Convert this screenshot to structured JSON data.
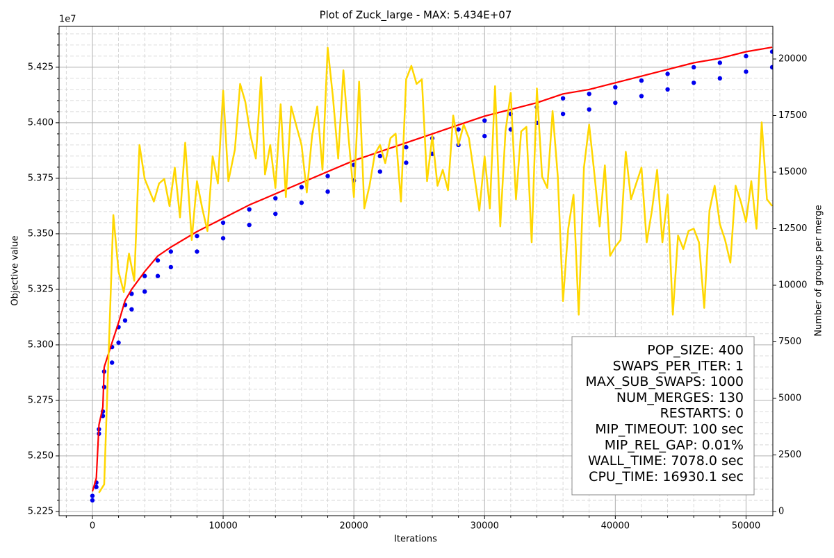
{
  "chart_data": {
    "type": "scatter-line",
    "title": "Plot of Zuck_large - MAX: 5.434E+07",
    "x_label": "Iterations",
    "y_label": "Objective value",
    "y2_label": "Number of groups per merge",
    "y_offset_label": "1e7",
    "xlim": [
      -2550,
      52050
    ],
    "ylim": [
      5.2231,
      5.4434
    ],
    "y2lim": [
      -184,
      21442
    ],
    "xticks": [
      0,
      10000,
      20000,
      30000,
      40000,
      50000
    ],
    "yticks": [
      {
        "value": 5.225,
        "label": "5.225"
      },
      {
        "value": 5.25,
        "label": "5.250"
      },
      {
        "value": 5.275,
        "label": "5.275"
      },
      {
        "value": 5.3,
        "label": "5.300"
      },
      {
        "value": 5.325,
        "label": "5.325"
      },
      {
        "value": 5.35,
        "label": "5.350"
      },
      {
        "value": 5.375,
        "label": "5.375"
      },
      {
        "value": 5.4,
        "label": "5.400"
      },
      {
        "value": 5.425,
        "label": "5.425"
      }
    ],
    "y2ticks": [
      0,
      2500,
      5000,
      7500,
      10000,
      12500,
      15000,
      17500,
      20000
    ],
    "xminor_ticks": [
      -2000,
      2000,
      4000,
      6000,
      8000,
      12000,
      14000,
      16000,
      18000,
      22000,
      24000,
      26000,
      28000,
      32000,
      34000,
      36000,
      38000,
      42000,
      44000,
      46000,
      48000
    ],
    "yminor_ticks": [
      5.23,
      5.235,
      5.24,
      5.245,
      5.255,
      5.26,
      5.265,
      5.27,
      5.28,
      5.285,
      5.29,
      5.295,
      5.305,
      5.31,
      5.315,
      5.32,
      5.33,
      5.335,
      5.34,
      5.345,
      5.355,
      5.36,
      5.365,
      5.37,
      5.38,
      5.385,
      5.39,
      5.395,
      5.405,
      5.41,
      5.415,
      5.42,
      5.43,
      5.435,
      5.44
    ],
    "grid": true,
    "population": {
      "color": "#0000ee",
      "x": [
        0,
        300,
        500,
        800,
        900,
        1500,
        2000,
        2500,
        3000,
        4000,
        5000,
        6000,
        8000,
        10000,
        12000,
        14000,
        16000,
        18000,
        20000,
        22000,
        24000,
        26000,
        28000,
        30000,
        32000,
        34000,
        36000,
        38000,
        40000,
        42000,
        44000,
        46000,
        48000,
        50000,
        52000,
        0,
        300,
        500,
        800,
        900,
        1500,
        2000,
        2500,
        3000,
        4000,
        5000,
        6000,
        8000,
        10000,
        12000,
        14000,
        16000,
        18000,
        20000,
        22000,
        24000,
        26000,
        28000,
        30000,
        32000,
        34000,
        36000,
        38000,
        40000,
        42000,
        44000,
        46000,
        48000,
        50000,
        52000
      ],
      "values": [
        5.232,
        5.238,
        5.262,
        5.27,
        5.288,
        5.299,
        5.308,
        5.318,
        5.323,
        5.331,
        5.338,
        5.342,
        5.349,
        5.355,
        5.361,
        5.366,
        5.371,
        5.376,
        5.381,
        5.385,
        5.389,
        5.393,
        5.397,
        5.401,
        5.404,
        5.407,
        5.411,
        5.413,
        5.416,
        5.419,
        5.422,
        5.425,
        5.427,
        5.43,
        5.432,
        5.23,
        5.236,
        5.26,
        5.268,
        5.281,
        5.292,
        5.301,
        5.311,
        5.316,
        5.324,
        5.331,
        5.335,
        5.342,
        5.348,
        5.354,
        5.359,
        5.364,
        5.369,
        5.374,
        5.378,
        5.382,
        5.386,
        5.39,
        5.394,
        5.397,
        5.4,
        5.404,
        5.406,
        5.409,
        5.412,
        5.415,
        5.418,
        5.42,
        5.423,
        5.425
      ]
    },
    "max_line": {
      "color": "#ff0000",
      "x": [
        0,
        300,
        500,
        800,
        900,
        1500,
        2000,
        2500,
        3000,
        4000,
        5000,
        6000,
        8000,
        10000,
        12000,
        14000,
        16000,
        18000,
        20000,
        22000,
        24000,
        26000,
        28000,
        30000,
        32000,
        34000,
        36000,
        38000,
        40000,
        42000,
        44000,
        46000,
        48000,
        50000,
        52000
      ],
      "values": [
        5.234,
        5.24,
        5.264,
        5.272,
        5.29,
        5.301,
        5.31,
        5.32,
        5.325,
        5.333,
        5.34,
        5.344,
        5.351,
        5.357,
        5.363,
        5.368,
        5.373,
        5.378,
        5.383,
        5.387,
        5.391,
        5.395,
        5.399,
        5.403,
        5.406,
        5.409,
        5.413,
        5.415,
        5.418,
        5.421,
        5.424,
        5.427,
        5.429,
        5.432,
        5.434
      ]
    },
    "groups_line": {
      "color": "#ffd700",
      "axis": "y2",
      "x": [
        500,
        900,
        1600,
        2000,
        2400,
        2800,
        3200,
        3600,
        4000,
        4700,
        5100,
        5500,
        5900,
        6300,
        6700,
        7100,
        7600,
        8000,
        8400,
        8800,
        9200,
        9600,
        10000,
        10400,
        10900,
        11300,
        11700,
        12100,
        12500,
        12900,
        13200,
        13600,
        14000,
        14400,
        14800,
        15200,
        16000,
        16400,
        16800,
        17200,
        17600,
        18000,
        18400,
        18800,
        19200,
        19600,
        20000,
        20400,
        20800,
        21200,
        21600,
        22000,
        22400,
        22800,
        23200,
        23600,
        24000,
        24400,
        24800,
        25200,
        25600,
        26000,
        26400,
        26800,
        27200,
        27600,
        28000,
        28400,
        28800,
        29200,
        29600,
        30000,
        30400,
        30800,
        31200,
        31600,
        32000,
        32400,
        32800,
        33200,
        33600,
        34000,
        34400,
        34800,
        35200,
        35600,
        36000,
        36400,
        36800,
        37200,
        37600,
        38000,
        38400,
        38800,
        39200,
        39600,
        40000,
        40400,
        40800,
        41200,
        42000,
        42400,
        42800,
        43200,
        43600,
        44000,
        44400,
        44800,
        45200,
        45600,
        46000,
        46400,
        46800,
        47200,
        47600,
        48000,
        48400,
        48800,
        49200,
        49600,
        50000,
        50400,
        50800,
        51200,
        51600,
        52000
      ],
      "values": [
        830,
        1200,
        13100,
        10600,
        9700,
        11400,
        10200,
        16200,
        14700,
        13700,
        14500,
        14700,
        13500,
        15200,
        13000,
        16300,
        12000,
        14600,
        13400,
        12400,
        15700,
        14500,
        18600,
        14600,
        16000,
        18900,
        18100,
        16600,
        15600,
        19200,
        14900,
        16200,
        14300,
        18000,
        13900,
        17900,
        16200,
        14100,
        16600,
        17900,
        15100,
        20500,
        18300,
        15600,
        19500,
        16500,
        13900,
        19000,
        13400,
        14400,
        15800,
        16200,
        15400,
        16500,
        16700,
        13700,
        19100,
        19700,
        18900,
        19100,
        14600,
        16600,
        14400,
        15100,
        14200,
        17500,
        16200,
        17100,
        16500,
        14900,
        13300,
        15700,
        13400,
        18800,
        12600,
        16800,
        18500,
        13800,
        16800,
        17000,
        11900,
        18700,
        14800,
        14300,
        17700,
        14800,
        9300,
        12500,
        14000,
        8700,
        15200,
        17100,
        14900,
        12600,
        15300,
        11300,
        11700,
        12000,
        15900,
        13800,
        15200,
        11900,
        13300,
        15100,
        11900,
        14000,
        8700,
        12200,
        11600,
        12400,
        12500,
        11900,
        9000,
        13300,
        14400,
        12700,
        12000,
        11000,
        14400,
        13700,
        12800,
        14600,
        12500,
        17200,
        13800,
        13500
      ]
    },
    "info_box": [
      "POP_SIZE: 400",
      "SWAPS_PER_ITER: 1",
      "MAX_SUB_SWAPS: 1000",
      "NUM_MERGES: 130",
      "RESTARTS: 0",
      "MIP_TIMEOUT: 100 sec",
      "MIP_REL_GAP: 0.01%",
      "WALL_TIME: 7078.0 sec",
      "CPU_TIME: 16930.1 sec"
    ]
  }
}
